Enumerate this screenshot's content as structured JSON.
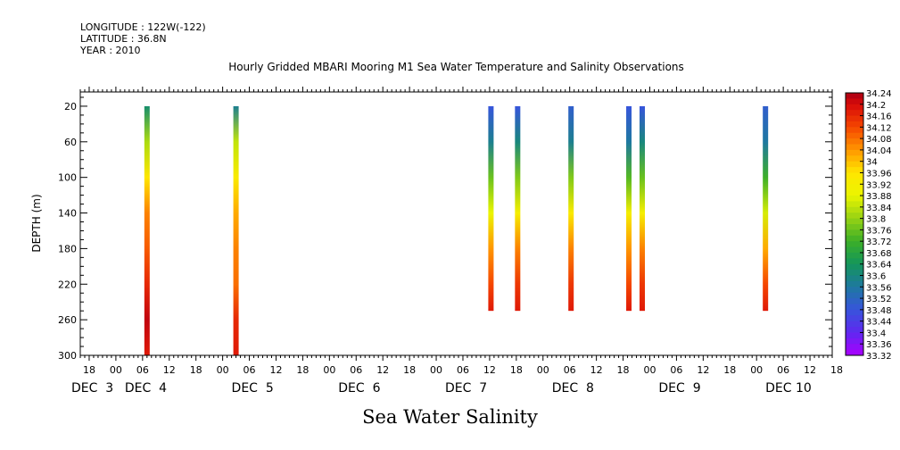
{
  "header": {
    "longitude": "LONGITUDE : 122W(-122)",
    "latitude": "LATITUDE : 36.8N",
    "year": "YEAR : 2010"
  },
  "footer_label": "Sea Water Salinity",
  "chart_data": {
    "type": "heatmap",
    "title": "Hourly Gridded MBARI Mooring M1 Sea Water Temperature and Salinity Observations",
    "xlabel": "",
    "ylabel": "DEPTH (m)",
    "y_axis": {
      "range": [
        300,
        4
      ],
      "reversed": true,
      "tick_values": [
        20,
        60,
        100,
        140,
        180,
        220,
        260,
        300
      ]
    },
    "x_axis": {
      "hour_range": [
        -8,
        161
      ],
      "hour_tick_labels": [
        "18",
        "00",
        "06",
        "12",
        "18",
        "00",
        "06",
        "12",
        "18",
        "00",
        "06",
        "12",
        "18",
        "00",
        "06",
        "12",
        "18",
        "00",
        "06",
        "12",
        "18",
        "00",
        "06",
        "12",
        "18",
        "00",
        "06",
        "12",
        "18"
      ],
      "day_labels": [
        {
          "text": "DEC  3",
          "hour": -6
        },
        {
          "text": "DEC  4",
          "hour": 6
        },
        {
          "text": "DEC  5",
          "hour": 30
        },
        {
          "text": "DEC  6",
          "hour": 54
        },
        {
          "text": "DEC  7",
          "hour": 78
        },
        {
          "text": "DEC  8",
          "hour": 102
        },
        {
          "text": "DEC  9",
          "hour": 126
        },
        {
          "text": "DEC 10",
          "hour": 150
        }
      ]
    },
    "colorbar": {
      "labels": [
        "34.24",
        "34.2",
        "34.16",
        "34.12",
        "34.08",
        "34.04",
        "34",
        "33.96",
        "33.92",
        "33.88",
        "33.84",
        "33.8",
        "33.76",
        "33.72",
        "33.68",
        "33.64",
        "33.6",
        "33.56",
        "33.52",
        "33.48",
        "33.44",
        "33.4",
        "33.36",
        "33.32"
      ],
      "min": 33.32,
      "max": 34.24
    },
    "columns": [
      {
        "hour": 7.0,
        "depth_range": [
          20,
          300
        ],
        "profile": [
          [
            20,
            33.62
          ],
          [
            60,
            33.82
          ],
          [
            100,
            33.96
          ],
          [
            140,
            34.06
          ],
          [
            180,
            34.1
          ],
          [
            220,
            34.16
          ],
          [
            260,
            34.22
          ],
          [
            300,
            34.18
          ]
        ]
      },
      {
        "hour": 27.0,
        "depth_range": [
          20,
          300
        ],
        "profile": [
          [
            20,
            33.58
          ],
          [
            60,
            33.84
          ],
          [
            100,
            33.94
          ],
          [
            140,
            34.02
          ],
          [
            180,
            34.06
          ],
          [
            220,
            34.08
          ],
          [
            260,
            34.16
          ],
          [
            300,
            34.18
          ]
        ]
      },
      {
        "hour": 84.3,
        "depth_range": [
          20,
          250
        ],
        "profile": [
          [
            20,
            33.48
          ],
          [
            60,
            33.58
          ],
          [
            100,
            33.76
          ],
          [
            140,
            33.88
          ],
          [
            180,
            34.04
          ],
          [
            220,
            34.12
          ],
          [
            250,
            34.18
          ]
        ]
      },
      {
        "hour": 90.3,
        "depth_range": [
          20,
          250
        ],
        "profile": [
          [
            20,
            33.48
          ],
          [
            60,
            33.6
          ],
          [
            100,
            33.78
          ],
          [
            140,
            33.92
          ],
          [
            180,
            34.06
          ],
          [
            220,
            34.14
          ],
          [
            250,
            34.18
          ]
        ]
      },
      {
        "hour": 102.3,
        "depth_range": [
          20,
          250
        ],
        "profile": [
          [
            20,
            33.5
          ],
          [
            60,
            33.58
          ],
          [
            100,
            33.78
          ],
          [
            140,
            33.94
          ],
          [
            180,
            34.06
          ],
          [
            220,
            34.14
          ],
          [
            250,
            34.18
          ]
        ]
      },
      {
        "hour": 115.3,
        "depth_range": [
          20,
          250
        ],
        "profile": [
          [
            20,
            33.48
          ],
          [
            60,
            33.56
          ],
          [
            100,
            33.74
          ],
          [
            140,
            33.92
          ],
          [
            180,
            34.04
          ],
          [
            220,
            34.12
          ],
          [
            250,
            34.18
          ]
        ]
      },
      {
        "hour": 118.3,
        "depth_range": [
          20,
          250
        ],
        "profile": [
          [
            20,
            33.48
          ],
          [
            60,
            33.6
          ],
          [
            100,
            33.76
          ],
          [
            140,
            33.92
          ],
          [
            180,
            34.06
          ],
          [
            220,
            34.14
          ],
          [
            250,
            34.18
          ]
        ]
      },
      {
        "hour": 146.0,
        "depth_range": [
          20,
          250
        ],
        "profile": [
          [
            20,
            33.5
          ],
          [
            60,
            33.56
          ],
          [
            100,
            33.72
          ],
          [
            140,
            33.86
          ],
          [
            180,
            34.02
          ],
          [
            220,
            34.12
          ],
          [
            250,
            34.18
          ]
        ]
      }
    ]
  }
}
